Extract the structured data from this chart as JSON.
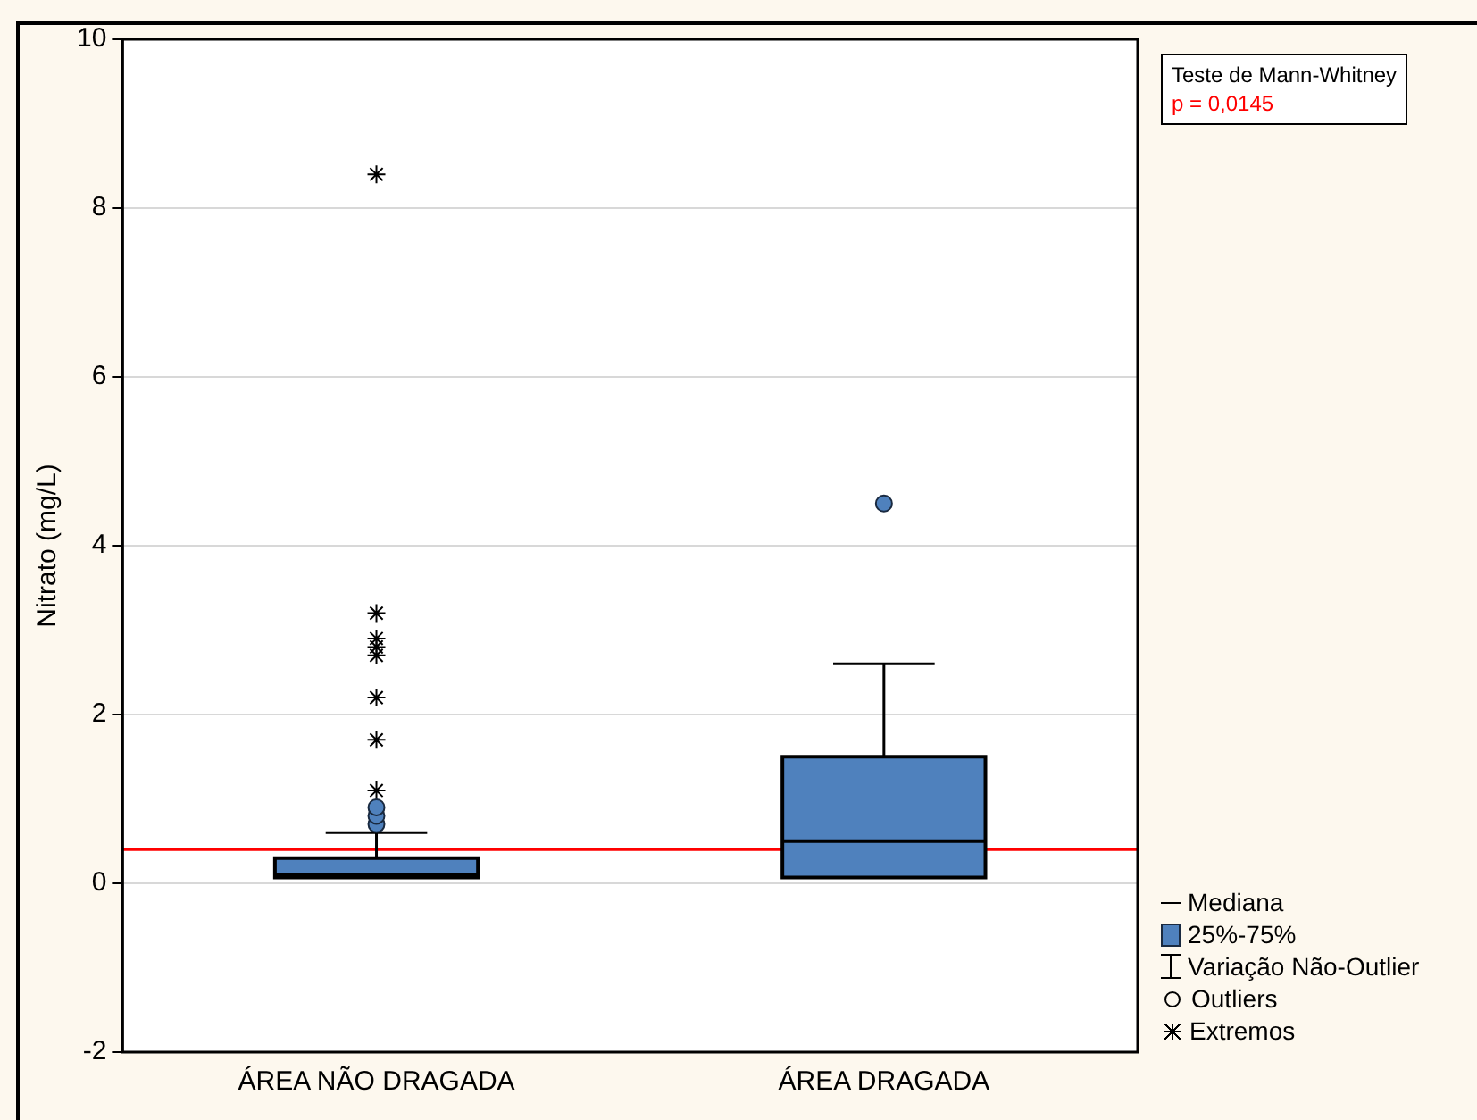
{
  "chart_data": {
    "type": "box",
    "categories": [
      "ÁREA NÃO DRAGADA",
      "ÁREA DRAGADA"
    ],
    "series": [
      {
        "type": "box",
        "color": "#4f81bd",
        "boxes": [
          {
            "low": 0.07,
            "q1": 0.07,
            "median": 0.1,
            "q3": 0.3,
            "high": 0.6,
            "outliers": [
              0.7,
              0.8,
              0.9
            ]
          },
          {
            "low": 0.07,
            "q1": 0.07,
            "median": 0.5,
            "q3": 1.5,
            "high": 2.6,
            "outliers": [
              4.5
            ]
          }
        ]
      },
      {
        "type": "scatter",
        "marker": "cross",
        "color": "#000000",
        "x": [
          "ÁREA NÃO DRAGADA",
          "ÁREA NÃO DRAGADA",
          "ÁREA NÃO DRAGADA",
          "ÁREA NÃO DRAGADA",
          "ÁREA NÃO DRAGADA",
          "ÁREA NÃO DRAGADA",
          "ÁREA NÃO DRAGADA",
          "ÁREA NÃO DRAGADA"
        ],
        "values": [
          8.4,
          3.2,
          2.9,
          2.8,
          2.7,
          2.2,
          1.7,
          1.1
        ]
      }
    ],
    "ylabel": "Nitrato (mg/L)",
    "ylim": [
      -2,
      10
    ],
    "yticks": [
      -2,
      0,
      2,
      4,
      6,
      8,
      10
    ],
    "grid": "y",
    "ref_lines": [
      {
        "axis": "y",
        "value": 0.4,
        "color": "#ff0000"
      }
    ],
    "annotations": [
      "Teste de Mann-Whitney",
      "p = 0,0145",
      "Mediana",
      "25%-75%",
      "Variação Não-Outlier",
      "Outliers",
      "Extremos"
    ]
  }
}
